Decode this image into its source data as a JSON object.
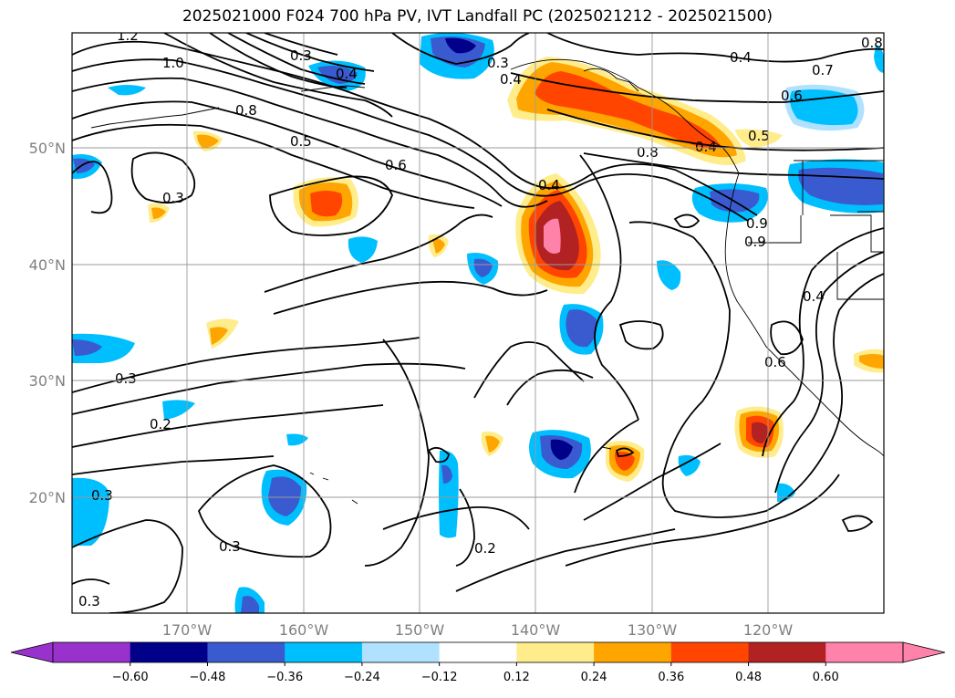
{
  "title": "2025021000 F024 700 hPa PV, IVT Landfall PC (2025021212 - 2025021500)",
  "lat_labels": [
    "50°N",
    "40°N",
    "30°N",
    "20°N"
  ],
  "lon_labels": [
    "170°W",
    "160°W",
    "150°W",
    "140°W",
    "130°W",
    "120°W"
  ],
  "contour_labels": [
    "1.2",
    "1.0",
    "0.8",
    "0.5",
    "0.6",
    "0.3",
    "0.3",
    "0.4",
    "0.3",
    "0.4",
    "0.4",
    "0.4",
    "0.8",
    "0.5",
    "0.4",
    "0.7",
    "0.6",
    "0.8",
    "0.9",
    "0.9",
    "0.4",
    "0.6",
    "0.3",
    "0.2",
    "0.3",
    "0.3",
    "0.2",
    "0.3"
  ],
  "colorbar": {
    "ticks": [
      "−0.60",
      "−0.48",
      "−0.36",
      "−0.24",
      "−0.12",
      "0.12",
      "0.24",
      "0.36",
      "0.48",
      "0.60"
    ],
    "colors": [
      "#9932cc",
      "#00008b",
      "#3a5bd0",
      "#00bfff",
      "#b0e2ff",
      "#ffffff",
      "#ffec8b",
      "#ffa500",
      "#ff4500",
      "#b22222",
      "#ff82ab",
      "#ff82ab"
    ],
    "extend": "both"
  }
}
